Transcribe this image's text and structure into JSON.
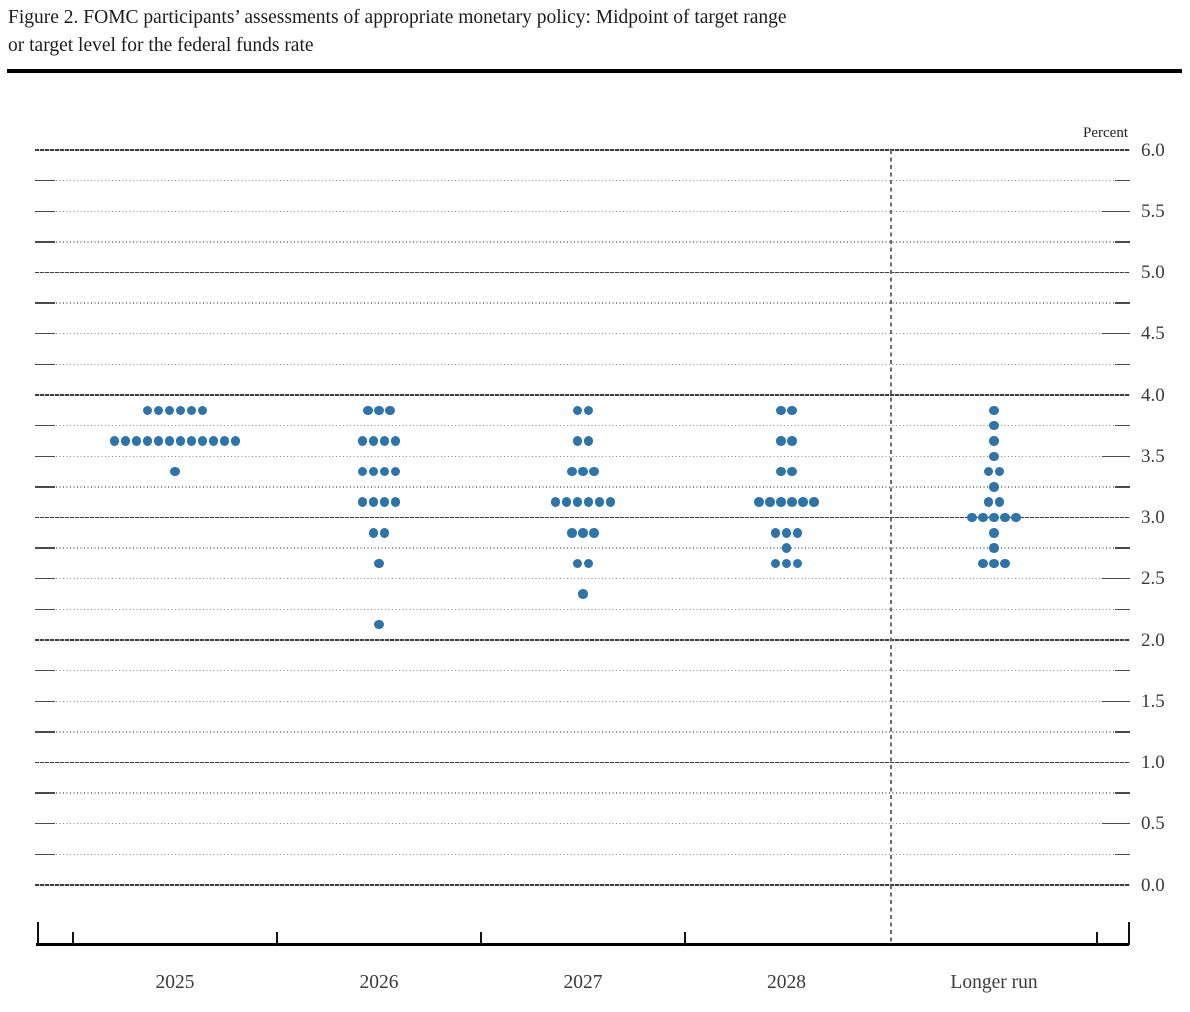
{
  "header": {
    "title_line1": "Figure 2. FOMC participants’ assessments of appropriate monetary policy: Midpoint of target range",
    "title_line2": "or target level for the federal funds rate"
  },
  "chart_data": {
    "type": "scatter",
    "subtype": "fomc-dot-plot",
    "title": "FOMC participants’ assessments of appropriate monetary policy: Midpoint of target range or target level for the federal funds rate",
    "unit_label": "Percent",
    "ylabel": "Percent",
    "y_axis": {
      "min": 0.0,
      "max": 6.0,
      "grid_interval": 0.25,
      "label_interval": 0.5,
      "tick_labels": [
        "6.0",
        "5.5",
        "5.0",
        "4.5",
        "4.0",
        "3.5",
        "3.0",
        "2.5",
        "2.0",
        "1.5",
        "1.0",
        "0.5",
        "0.0"
      ]
    },
    "grid": "dotted quarter-point lines with solid whole-point lines",
    "legend_position": "none",
    "categories": [
      "2025",
      "2026",
      "2027",
      "2028",
      "Longer run"
    ],
    "separator_before_category": "Longer run",
    "dot_color": "#2E74A8",
    "series": [
      {
        "category": "2025",
        "dots": [
          {
            "rate": 3.875,
            "count": 6
          },
          {
            "rate": 3.625,
            "count": 12
          },
          {
            "rate": 3.375,
            "count": 1
          }
        ]
      },
      {
        "category": "2026",
        "dots": [
          {
            "rate": 3.875,
            "count": 3
          },
          {
            "rate": 3.625,
            "count": 4
          },
          {
            "rate": 3.375,
            "count": 4
          },
          {
            "rate": 3.125,
            "count": 4
          },
          {
            "rate": 2.875,
            "count": 2
          },
          {
            "rate": 2.625,
            "count": 1
          },
          {
            "rate": 2.125,
            "count": 1
          }
        ]
      },
      {
        "category": "2027",
        "dots": [
          {
            "rate": 3.875,
            "count": 2
          },
          {
            "rate": 3.625,
            "count": 2
          },
          {
            "rate": 3.375,
            "count": 3
          },
          {
            "rate": 3.125,
            "count": 6
          },
          {
            "rate": 2.875,
            "count": 3
          },
          {
            "rate": 2.625,
            "count": 2
          },
          {
            "rate": 2.375,
            "count": 1
          }
        ]
      },
      {
        "category": "2028",
        "dots": [
          {
            "rate": 3.875,
            "count": 2
          },
          {
            "rate": 3.625,
            "count": 2
          },
          {
            "rate": 3.375,
            "count": 2
          },
          {
            "rate": 3.125,
            "count": 6
          },
          {
            "rate": 2.875,
            "count": 3
          },
          {
            "rate": 2.75,
            "count": 1
          },
          {
            "rate": 2.625,
            "count": 3
          }
        ]
      },
      {
        "category": "Longer run",
        "dots": [
          {
            "rate": 3.875,
            "count": 1
          },
          {
            "rate": 3.75,
            "count": 1
          },
          {
            "rate": 3.625,
            "count": 1
          },
          {
            "rate": 3.5,
            "count": 1
          },
          {
            "rate": 3.375,
            "count": 2
          },
          {
            "rate": 3.25,
            "count": 1
          },
          {
            "rate": 3.125,
            "count": 2
          },
          {
            "rate": 3.0,
            "count": 5
          },
          {
            "rate": 2.875,
            "count": 1
          },
          {
            "rate": 2.75,
            "count": 1
          },
          {
            "rate": 2.625,
            "count": 3
          }
        ]
      }
    ]
  }
}
